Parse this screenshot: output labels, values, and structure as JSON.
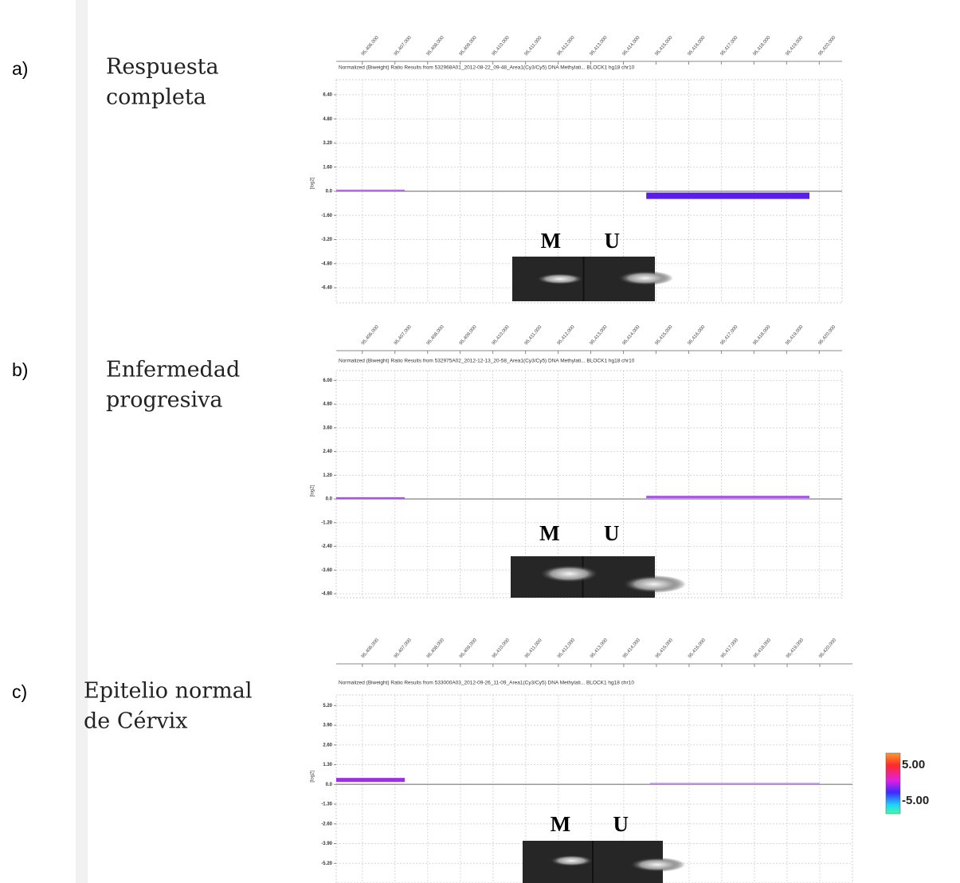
{
  "chart_data": [
    {
      "type": "line",
      "panel_label": "a)",
      "description": [
        "Respuesta",
        "completa"
      ],
      "title": "Normalized (Biweight) Ratio Results from 532968A01_2012-08-22_09-48_Area1(Cy3/Cy5) DNA Methylati...   BLOCK1 hg18 chr10",
      "ylabel": "[log2]",
      "xlim": [
        95405200,
        95420700
      ],
      "xticks": [
        {
          "value": 95406000,
          "label": "95,406,000"
        },
        {
          "value": 95407000,
          "label": "95,407,000"
        },
        {
          "value": 95408000,
          "label": "95,408,000"
        },
        {
          "value": 95409000,
          "label": "95,409,000"
        },
        {
          "value": 95410000,
          "label": "95,410,000"
        },
        {
          "value": 95411000,
          "label": "95,411,000"
        },
        {
          "value": 95412000,
          "label": "95,412,000"
        },
        {
          "value": 95413000,
          "label": "95,413,000"
        },
        {
          "value": 95414000,
          "label": "95,414,000"
        },
        {
          "value": 95415000,
          "label": "95,415,000"
        },
        {
          "value": 95416000,
          "label": "95,416,000"
        },
        {
          "value": 95417000,
          "label": "95,417,000"
        },
        {
          "value": 95418000,
          "label": "95,418,000"
        },
        {
          "value": 95419000,
          "label": "95,419,000"
        },
        {
          "value": 95420000,
          "label": "95,420,000"
        }
      ],
      "ylim": [
        -7.4,
        7.4
      ],
      "yticks": [
        {
          "value": 6.4,
          "label": "6.40"
        },
        {
          "value": 4.8,
          "label": "4.80"
        },
        {
          "value": 3.2,
          "label": "3.20"
        },
        {
          "value": 1.6,
          "label": "1.60"
        },
        {
          "value": 0,
          "label": "0.0"
        },
        {
          "value": -1.6,
          "label": "-1.60"
        },
        {
          "value": -3.2,
          "label": "-3.20"
        },
        {
          "value": -4.8,
          "label": "-4.80"
        },
        {
          "value": -6.4,
          "label": "-6.40"
        }
      ],
      "grid": true,
      "series": [
        {
          "color": "#b36be6",
          "line_width": 2,
          "x": [
            95405200,
            95407300
          ],
          "values": [
            0.05,
            0.05
          ]
        },
        {
          "color": "#5a1ee6",
          "line_width": 8,
          "x": [
            95414700,
            95419700
          ],
          "values": [
            -0.3,
            -0.3
          ]
        }
      ],
      "gel_labels": [
        "M",
        "U"
      ]
    },
    {
      "type": "line",
      "panel_label": "b)",
      "description": [
        "Enfermedad",
        "progresiva"
      ],
      "title": "Normalized (Biweight) Ratio Results from 532975A02_2012-12-13_20-58_Area1(Cy3/Cy5) DNA Methylati...   BLOCK1 hg18 chr10",
      "ylabel": "[log2]",
      "xlim": [
        95405200,
        95420700
      ],
      "xticks": [
        {
          "value": 95406000,
          "label": "95,406,000"
        },
        {
          "value": 95407000,
          "label": "95,407,000"
        },
        {
          "value": 95408000,
          "label": "95,408,000"
        },
        {
          "value": 95409000,
          "label": "95,409,000"
        },
        {
          "value": 95410000,
          "label": "95,410,000"
        },
        {
          "value": 95411000,
          "label": "95,411,000"
        },
        {
          "value": 95412000,
          "label": "95,412,000"
        },
        {
          "value": 95413000,
          "label": "95,413,000"
        },
        {
          "value": 95414000,
          "label": "95,414,000"
        },
        {
          "value": 95415000,
          "label": "95,415,000"
        },
        {
          "value": 95416000,
          "label": "95,416,000"
        },
        {
          "value": 95417000,
          "label": "95,417,000"
        },
        {
          "value": 95418000,
          "label": "95,418,000"
        },
        {
          "value": 95419000,
          "label": "95,419,000"
        },
        {
          "value": 95420000,
          "label": "95,420,000"
        }
      ],
      "ylim": [
        -5.0,
        6.5
      ],
      "yticks": [
        {
          "value": 6,
          "label": "6.00"
        },
        {
          "value": 4.8,
          "label": "4.80"
        },
        {
          "value": 3.6,
          "label": "3.60"
        },
        {
          "value": 2.4,
          "label": "2.40"
        },
        {
          "value": 1.2,
          "label": "1.20"
        },
        {
          "value": 0,
          "label": "0.0"
        },
        {
          "value": -1.2,
          "label": "-1.20"
        },
        {
          "value": -2.4,
          "label": "-2.40"
        },
        {
          "value": -3.6,
          "label": "-3.60"
        },
        {
          "value": -4.8,
          "label": "-4.80"
        }
      ],
      "grid": true,
      "series": [
        {
          "color": "#a855e6",
          "line_width": 2,
          "x": [
            95405200,
            95407300
          ],
          "values": [
            0.05,
            0.05
          ]
        },
        {
          "color": "#a855e6",
          "line_width": 3,
          "x": [
            95414700,
            95419700
          ],
          "values": [
            0.1,
            0.1
          ]
        }
      ],
      "gel_labels": [
        "M",
        "U"
      ]
    },
    {
      "type": "line",
      "panel_label": "c)",
      "description": [
        "Epitelio normal",
        "de Cérvix"
      ],
      "title": "Normalized (Biweight) Ratio Results from 533000A03_2012-09-26_11-09_Area1(Cy3/Cy5) DNA Methylati...   BLOCK1 hg18 chr10",
      "ylabel": "[log2]",
      "xlim": [
        95405200,
        95421000
      ],
      "xticks": [
        {
          "value": 95406000,
          "label": "95,406,000"
        },
        {
          "value": 95407000,
          "label": "95,407,000"
        },
        {
          "value": 95408000,
          "label": "95,408,000"
        },
        {
          "value": 95409000,
          "label": "95,409,000"
        },
        {
          "value": 95410000,
          "label": "95,410,000"
        },
        {
          "value": 95411000,
          "label": "95,411,000"
        },
        {
          "value": 95412000,
          "label": "95,412,000"
        },
        {
          "value": 95413000,
          "label": "95,413,000"
        },
        {
          "value": 95414000,
          "label": "95,414,000"
        },
        {
          "value": 95415000,
          "label": "95,415,000"
        },
        {
          "value": 95416000,
          "label": "95,416,000"
        },
        {
          "value": 95417000,
          "label": "95,417,000"
        },
        {
          "value": 95418000,
          "label": "95,418,000"
        },
        {
          "value": 95419000,
          "label": "95,419,000"
        },
        {
          "value": 95420000,
          "label": "95,420,000"
        }
      ],
      "ylim": [
        -6.5,
        5.9
      ],
      "yticks": [
        {
          "value": 5.2,
          "label": "5.20"
        },
        {
          "value": 3.9,
          "label": "3.90"
        },
        {
          "value": 2.6,
          "label": "2.60"
        },
        {
          "value": 1.3,
          "label": "1.30"
        },
        {
          "value": 0,
          "label": "0.0"
        },
        {
          "value": -1.3,
          "label": "-1.30"
        },
        {
          "value": -2.6,
          "label": "-2.60"
        },
        {
          "value": -3.9,
          "label": "-3.90"
        },
        {
          "value": -5.2,
          "label": "-5.20"
        }
      ],
      "grid": true,
      "series": [
        {
          "color": "#9b30e0",
          "line_width": 5,
          "x": [
            95405200,
            95407300
          ],
          "values": [
            0.3,
            0.3
          ]
        },
        {
          "color": "#c38af0",
          "line_width": 2,
          "x": [
            95414800,
            95420000
          ],
          "values": [
            0.05,
            0.05
          ]
        }
      ],
      "gel_labels": [
        "M",
        "U"
      ]
    }
  ],
  "colorbar": {
    "ticks": [
      {
        "value": 5,
        "label": "5.00"
      },
      {
        "value": -5,
        "label": "-5.00"
      }
    ]
  }
}
